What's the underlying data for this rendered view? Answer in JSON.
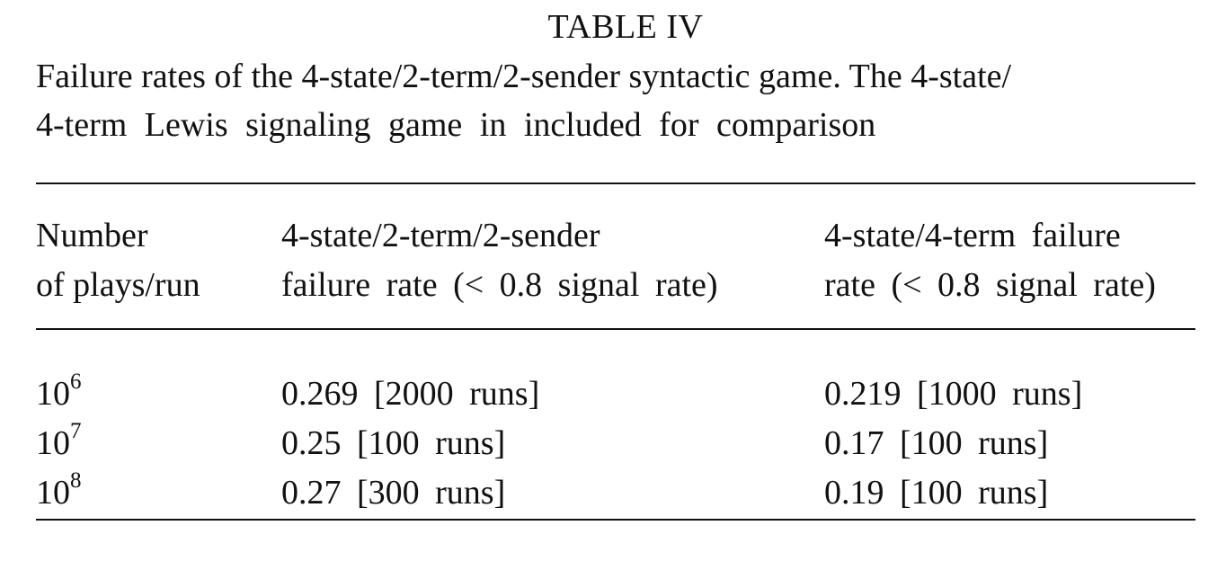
{
  "table": {
    "label": "TABLE IV",
    "caption_line1": "Failure rates of the 4-state/2-term/2-sender syntactic game. The 4-state/",
    "caption_line2": "4-term Lewis signaling game in included for comparison",
    "headers": [
      {
        "line1": "Number",
        "line2": "of plays/run"
      },
      {
        "line1": "4-state/2-term/2-sender",
        "line2": "failure rate (< 0.8 signal rate)"
      },
      {
        "line1": "4-state/4-term failure",
        "line2": "rate (< 0.8 signal rate)"
      }
    ],
    "rows": [
      {
        "base": "10",
        "exp": "6",
        "syntactic": "0.269 [2000 runs]",
        "lewis": "0.219 [1000 runs]"
      },
      {
        "base": "10",
        "exp": "7",
        "syntactic": "0.25 [100 runs]",
        "lewis": "0.17 [100 runs]"
      },
      {
        "base": "10",
        "exp": "8",
        "syntactic": "0.27 [300 runs]",
        "lewis": "0.19 [100 runs]"
      }
    ]
  }
}
